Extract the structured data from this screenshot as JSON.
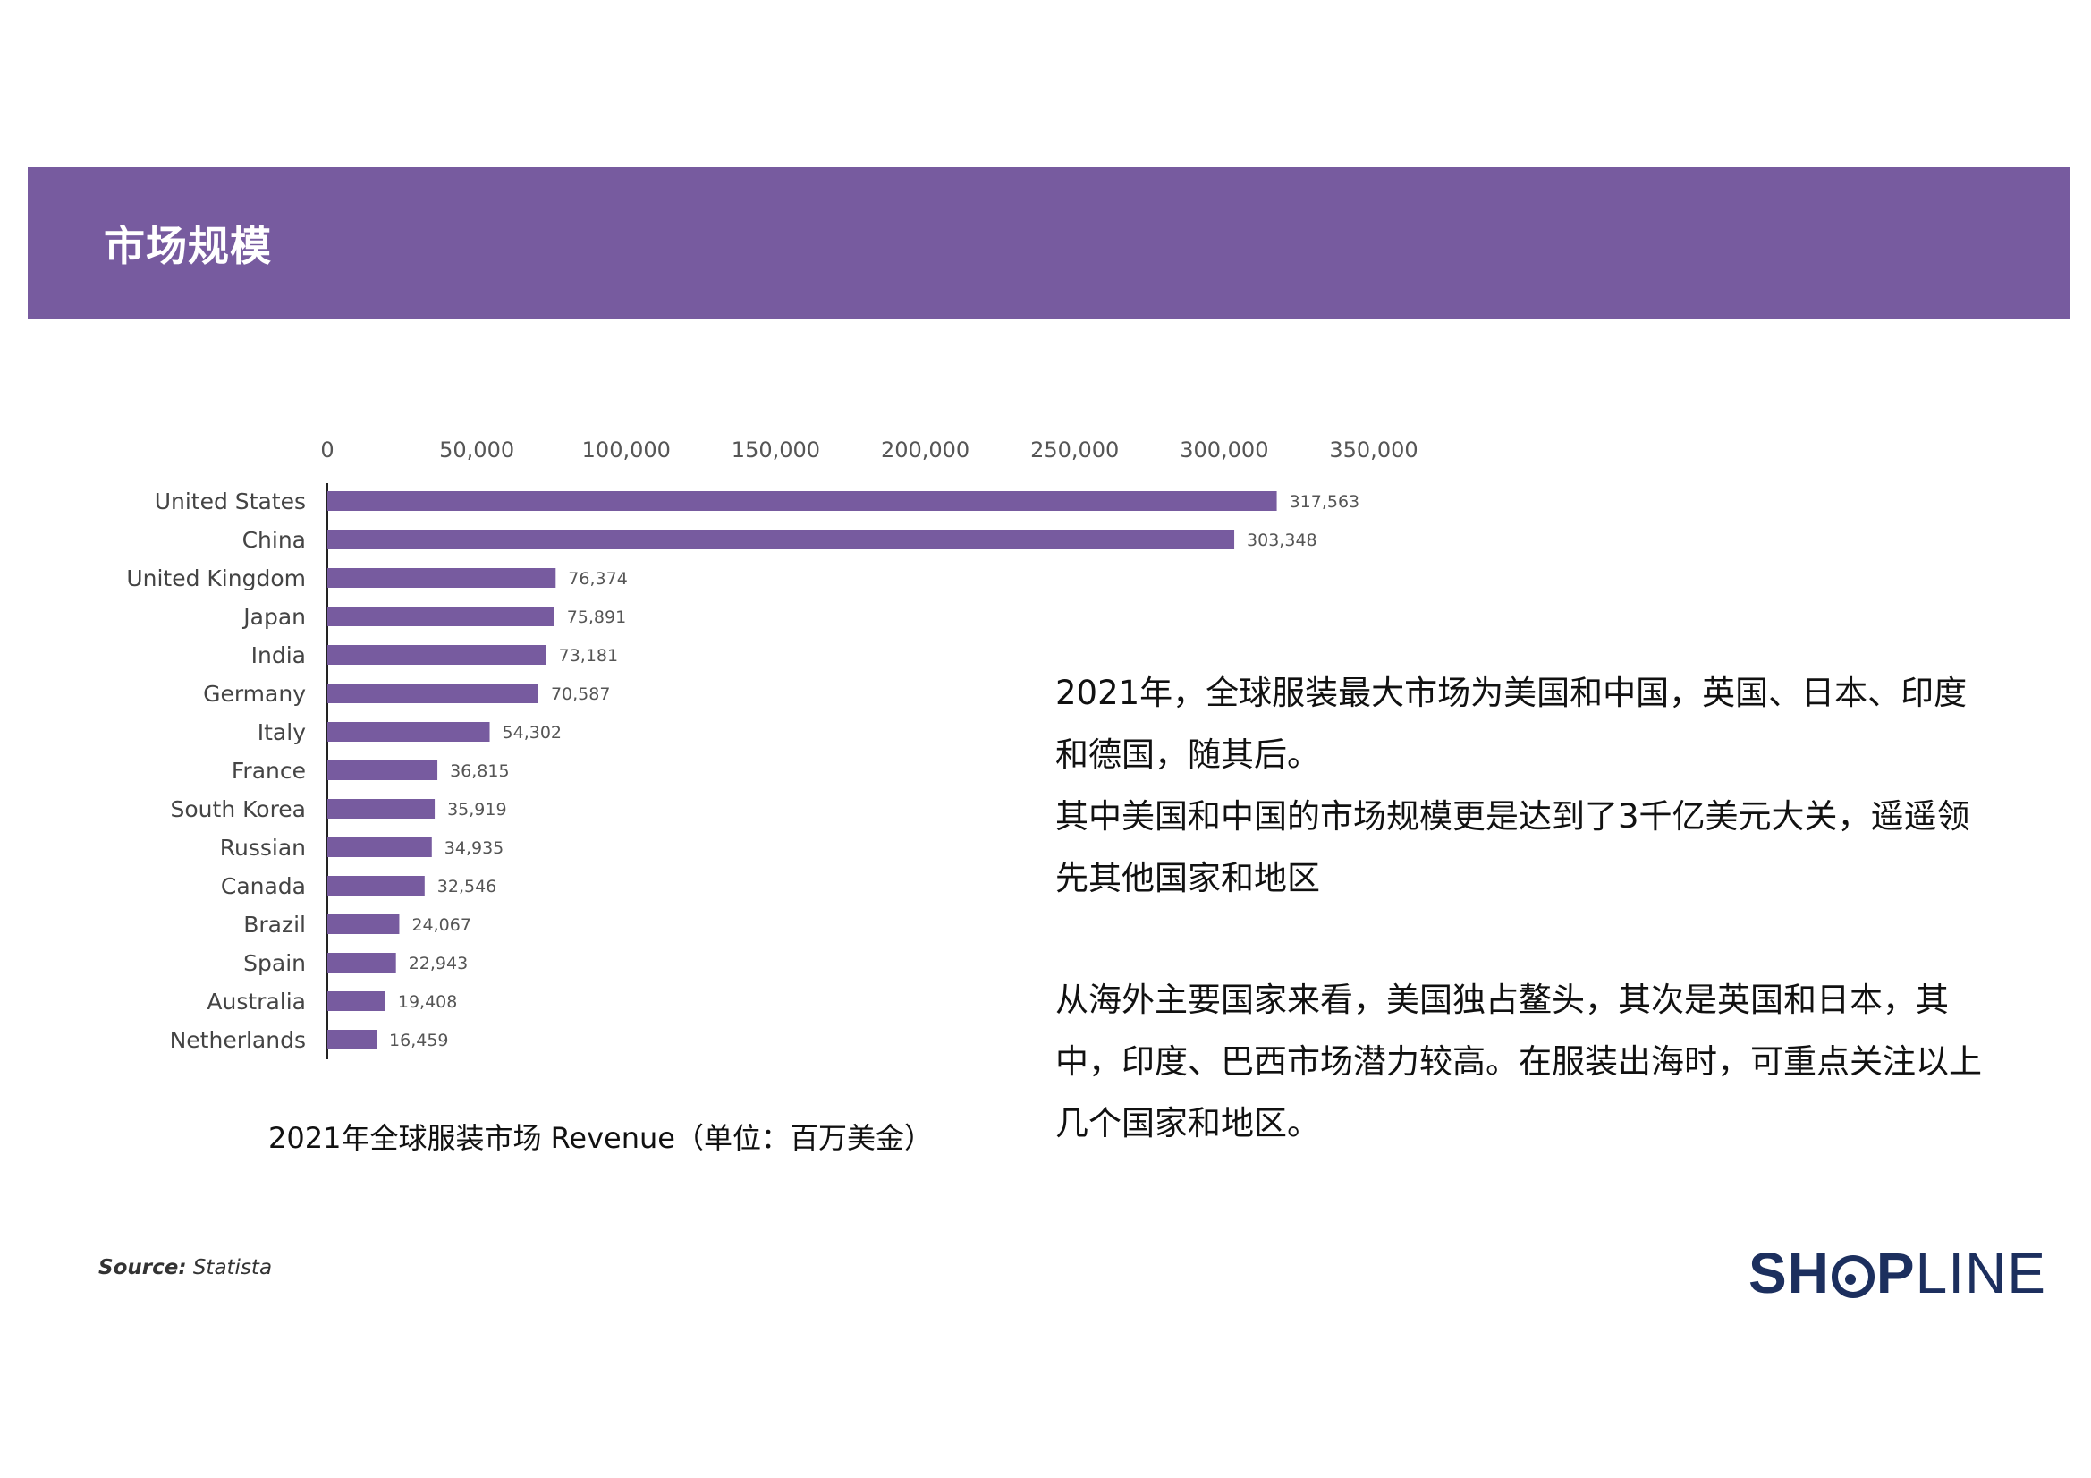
{
  "header": {
    "title": "市场规模"
  },
  "chart_data": {
    "type": "bar",
    "orientation": "horizontal",
    "categories": [
      "United States",
      "China",
      "United Kingdom",
      "Japan",
      "India",
      "Germany",
      "Italy",
      "France",
      "South Korea",
      "Russian",
      "Canada",
      "Brazil",
      "Spain",
      "Australia",
      "Netherlands"
    ],
    "values": [
      317563,
      303348,
      76374,
      75891,
      73181,
      70587,
      54302,
      36815,
      35919,
      34935,
      32546,
      24067,
      22943,
      19408,
      16459
    ],
    "value_labels": [
      "317,563",
      "303,348",
      "76,374",
      "75,891",
      "73,181",
      "70,587",
      "54,302",
      "36,815",
      "35,919",
      "34,935",
      "32,546",
      "24,067",
      "22,943",
      "19,408",
      "16,459"
    ],
    "x_ticks": [
      0,
      50000,
      100000,
      150000,
      200000,
      250000,
      300000,
      350000
    ],
    "x_tick_labels": [
      "0",
      "50,000",
      "100,000",
      "150,000",
      "200,000",
      "250,000",
      "300,000",
      "350,000"
    ],
    "xlim": [
      0,
      350000
    ],
    "axis_position": "top",
    "grid": false,
    "bar_color": "#775b9f",
    "caption": "2021年全球服装市场 Revenue（单位：百万美金）"
  },
  "text": {
    "para1_line1": "2021年，全球服装最大市场为美国和中国，英国、日本、印度和德国，随其后。",
    "para1_line2": "其中美国和中国的市场规模更是达到了3千亿美元大关，遥遥领先其他国家和地区",
    "para2": "从海外主要国家来看，美国独占鳌头，其次是英国和日本，其中，印度、巴西市场潜力较高。在服装出海时，可重点关注以上几个国家和地区。"
  },
  "footer": {
    "source_label": "Source:",
    "source_value": "Statista",
    "logo_bold_left": "SH",
    "logo_bold_right": "P",
    "logo_light": "LINE"
  },
  "colors": {
    "accent": "#775b9f",
    "logo": "#1c2f5e"
  }
}
